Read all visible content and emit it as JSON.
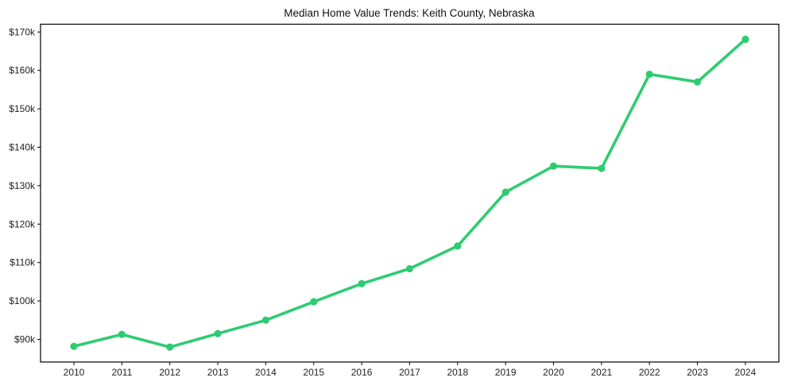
{
  "chart_data": {
    "type": "line",
    "title": "Median Home Value Trends: Keith County, Nebraska",
    "xlabel": "",
    "ylabel": "",
    "categories": [
      "2010",
      "2011",
      "2012",
      "2013",
      "2014",
      "2015",
      "2016",
      "2017",
      "2018",
      "2019",
      "2020",
      "2021",
      "2022",
      "2023",
      "2024"
    ],
    "series": [
      {
        "name": "Median Home Value",
        "color": "#2ecc71",
        "marker": "circle",
        "values": [
          88200,
          91300,
          88000,
          91500,
          95000,
          99800,
          104500,
          108400,
          114300,
          128300,
          135100,
          134500,
          159000,
          157000,
          168100
        ]
      }
    ],
    "yticks": [
      90000,
      100000,
      110000,
      120000,
      130000,
      140000,
      150000,
      160000,
      170000
    ],
    "ytick_labels": [
      "$90k",
      "$100k",
      "$110k",
      "$120k",
      "$130k",
      "$140k",
      "$150k",
      "$160k",
      "$170k"
    ],
    "ylim": [
      84100,
      172100
    ],
    "grid": false,
    "legend": "none"
  }
}
